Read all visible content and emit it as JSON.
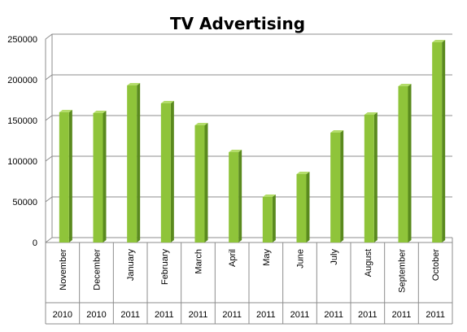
{
  "chart_data": {
    "type": "bar",
    "title": "TV Advertising",
    "xlabel": "",
    "ylabel": "",
    "ylim": [
      0,
      250000
    ],
    "yticks": [
      0,
      50000,
      100000,
      150000,
      200000,
      250000
    ],
    "ytick_labels": [
      "0",
      "50000",
      "100000",
      "150000",
      "200000",
      "250000"
    ],
    "categories": [
      "November",
      "December",
      "January",
      "February",
      "March",
      "April",
      "May",
      "June",
      "July",
      "August",
      "September",
      "October"
    ],
    "years": [
      "2010",
      "2010",
      "2011",
      "2011",
      "2011",
      "2011",
      "2011",
      "2011",
      "2011",
      "2011",
      "2011",
      "2011"
    ],
    "values": [
      160000,
      159000,
      193000,
      171000,
      144000,
      111000,
      56000,
      84000,
      135000,
      157000,
      192000,
      246000
    ],
    "grid": true,
    "legend": "none",
    "bar_color": "#8fc43a",
    "bar_side_color": "#5a8a1e",
    "bar_top_color": "#b3dc6a"
  }
}
